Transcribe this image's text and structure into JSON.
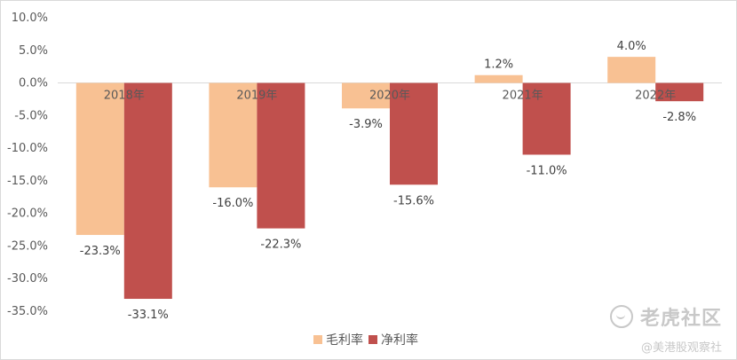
{
  "chart_data": {
    "type": "bar",
    "categories": [
      "2018年",
      "2019年",
      "2020年",
      "2021年",
      "2022年"
    ],
    "series": [
      {
        "name": "毛利率",
        "color": "#f8c193",
        "values": [
          -23.3,
          -16.0,
          -3.9,
          1.2,
          4.0
        ],
        "labels": [
          "-23.3%",
          "-16.0%",
          "-3.9%",
          "1.2%",
          "4.0%"
        ]
      },
      {
        "name": "净利率",
        "color": "#c0504d",
        "values": [
          -33.1,
          -22.3,
          -15.6,
          -11.0,
          -2.8
        ],
        "labels": [
          "-33.1%",
          "-22.3%",
          "-15.6%",
          "-11.0%",
          "-2.8%"
        ]
      }
    ],
    "y_ticks": [
      "10.0%",
      "5.0%",
      "0.0%",
      "-5.0%",
      "-10.0%",
      "-15.0%",
      "-20.0%",
      "-25.0%",
      "-30.0%",
      "-35.0%"
    ],
    "ylim": [
      -35,
      10
    ],
    "grid": false,
    "legend_position": "bottom"
  },
  "watermark": {
    "brand": "老虎社区",
    "sub": "@美港股观察社",
    "icon": "tiger-community-icon"
  }
}
